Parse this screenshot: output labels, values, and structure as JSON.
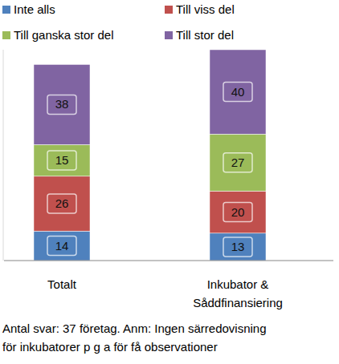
{
  "chart_data": {
    "type": "bar",
    "stacked": true,
    "data_labels": true,
    "tick_labels": false,
    "legend": "top",
    "categories": [
      "Totalt",
      "Inkubator & Såddfinansiering"
    ],
    "ylim": [
      0,
      100
    ],
    "series": [
      {
        "name": "Inte alls",
        "color": "#4f81bd",
        "values": [
          14,
          13
        ]
      },
      {
        "name": "Till viss del",
        "color": "#c0504d",
        "values": [
          26,
          20
        ]
      },
      {
        "name": "Till ganska stor del",
        "color": "#9bbb59",
        "values": [
          15,
          27
        ]
      },
      {
        "name": "Till stor del",
        "color": "#8064a2",
        "values": [
          38,
          40
        ]
      }
    ],
    "note": [
      "Antal svar: 37 företag. Anm: Ingen särredovisning",
      "för inkubatorer p g a för få observationer"
    ]
  }
}
